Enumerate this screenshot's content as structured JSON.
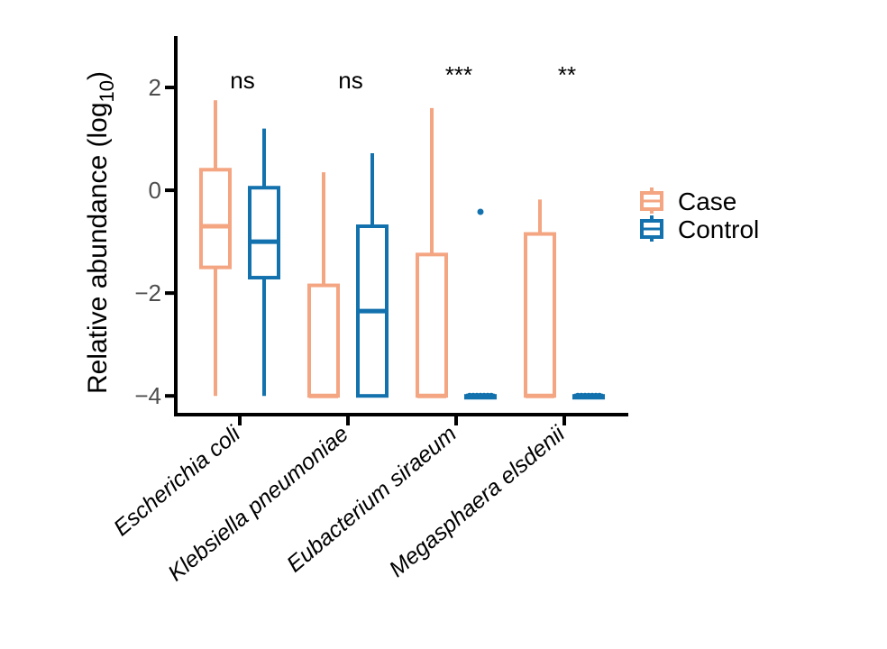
{
  "chart_data": {
    "type": "boxplot",
    "title": "",
    "xlabel": "",
    "ylabel": "Relative abundance (log",
    "ylabel_subscript": "10",
    "ylabel_suffix": ")",
    "ylim": [
      -4.4,
      3.0
    ],
    "yticks": [
      2,
      0,
      -2,
      -4
    ],
    "ytick_labels": [
      "2",
      "0",
      "−2",
      "−4"
    ],
    "categories": [
      "Escherichia coli",
      "Klebsiella pneumoniae",
      "Eubacterium siraeum",
      "Megasphaera elsdenii"
    ],
    "significance": [
      "ns",
      "ns",
      "***",
      "**"
    ],
    "series": [
      {
        "name": "Case",
        "color": "#F4A582",
        "boxes": [
          {
            "whisker_low": -4.0,
            "q1": -1.5,
            "median": -0.7,
            "q3": 0.4,
            "whisker_high": 1.75,
            "outliers": []
          },
          {
            "whisker_low": -4.0,
            "q1": -4.0,
            "median": -4.0,
            "q3": -1.85,
            "whisker_high": 0.35,
            "outliers": []
          },
          {
            "whisker_low": -4.0,
            "q1": -4.0,
            "median": -4.0,
            "q3": -1.25,
            "whisker_high": 1.6,
            "outliers": []
          },
          {
            "whisker_low": -4.0,
            "q1": -4.0,
            "median": -4.0,
            "q3": -0.85,
            "whisker_high": -0.18,
            "outliers": []
          }
        ]
      },
      {
        "name": "Control",
        "color": "#1372AD",
        "boxes": [
          {
            "whisker_low": -4.0,
            "q1": -1.7,
            "median": -1.0,
            "q3": 0.05,
            "whisker_high": 1.2,
            "outliers": []
          },
          {
            "whisker_low": -4.0,
            "q1": -4.0,
            "median": -2.35,
            "q3": -0.7,
            "whisker_high": 0.72,
            "outliers": []
          },
          {
            "whisker_low": -4.0,
            "q1": -4.0,
            "median": -4.0,
            "q3": -4.0,
            "whisker_high": -4.0,
            "outliers": [
              -0.42
            ]
          },
          {
            "whisker_low": -4.0,
            "q1": -4.0,
            "median": -4.0,
            "q3": -4.0,
            "whisker_high": -4.0,
            "outliers": []
          }
        ]
      }
    ],
    "legend": {
      "position": "right",
      "entries": [
        "Case",
        "Control"
      ]
    }
  }
}
